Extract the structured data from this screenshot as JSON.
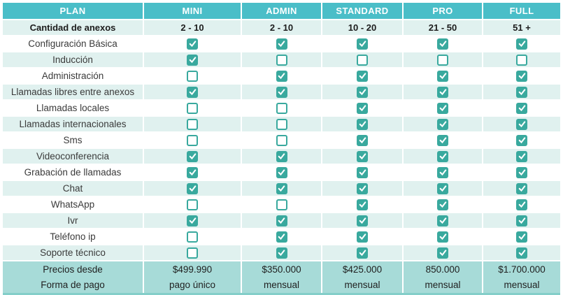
{
  "header": {
    "plan": "PLAN",
    "columns": [
      "MINI",
      "ADMIN",
      "STANDARD",
      "PRO",
      "FULL"
    ]
  },
  "anexos": {
    "label": "Cantidad de anexos",
    "values": [
      "2 - 10",
      "2 - 10",
      "10 - 20",
      "21 - 50",
      "51 +"
    ]
  },
  "features": [
    {
      "label": "Configuración Básica",
      "checks": [
        true,
        true,
        true,
        true,
        true
      ]
    },
    {
      "label": "Inducción",
      "checks": [
        true,
        false,
        false,
        false,
        false
      ]
    },
    {
      "label": "Administración",
      "checks": [
        false,
        true,
        true,
        true,
        true
      ]
    },
    {
      "label": "Llamadas libres entre anexos",
      "checks": [
        true,
        true,
        true,
        true,
        true
      ]
    },
    {
      "label": "Llamadas locales",
      "checks": [
        false,
        false,
        true,
        true,
        true
      ]
    },
    {
      "label": "Llamadas internacionales",
      "checks": [
        false,
        false,
        true,
        true,
        true
      ]
    },
    {
      "label": "Sms",
      "checks": [
        false,
        false,
        true,
        true,
        true
      ]
    },
    {
      "label": "Videoconferencia",
      "checks": [
        true,
        true,
        true,
        true,
        true
      ]
    },
    {
      "label": "Grabación de llamadas",
      "checks": [
        true,
        true,
        true,
        true,
        true
      ]
    },
    {
      "label": "Chat",
      "checks": [
        true,
        true,
        true,
        true,
        true
      ]
    },
    {
      "label": "WhatsApp",
      "checks": [
        false,
        false,
        true,
        true,
        true
      ]
    },
    {
      "label": "Ivr",
      "checks": [
        true,
        true,
        true,
        true,
        true
      ]
    },
    {
      "label": "Teléfono ip",
      "checks": [
        false,
        true,
        true,
        true,
        true
      ]
    },
    {
      "label": "Soporte técnico",
      "checks": [
        false,
        true,
        true,
        true,
        true
      ]
    }
  ],
  "pricing": {
    "price_label": "Precios desde",
    "payment_label": "Forma de pago",
    "prices": [
      "$499.990",
      "$350.000",
      "$425.000",
      "850.000",
      "$1.700.000"
    ],
    "payments": [
      "pago único",
      "mensual",
      "mensual",
      "mensual",
      "mensual"
    ]
  },
  "colors": {
    "header_bg": "#4ABEC8",
    "row_alt_bg": "#E0F1EF",
    "checkbox_teal": "#39A99E",
    "pricing_bg": "#A7DBD8",
    "footer_strip_bg": "#84CEC9",
    "header_text": "#FFFFFF"
  }
}
